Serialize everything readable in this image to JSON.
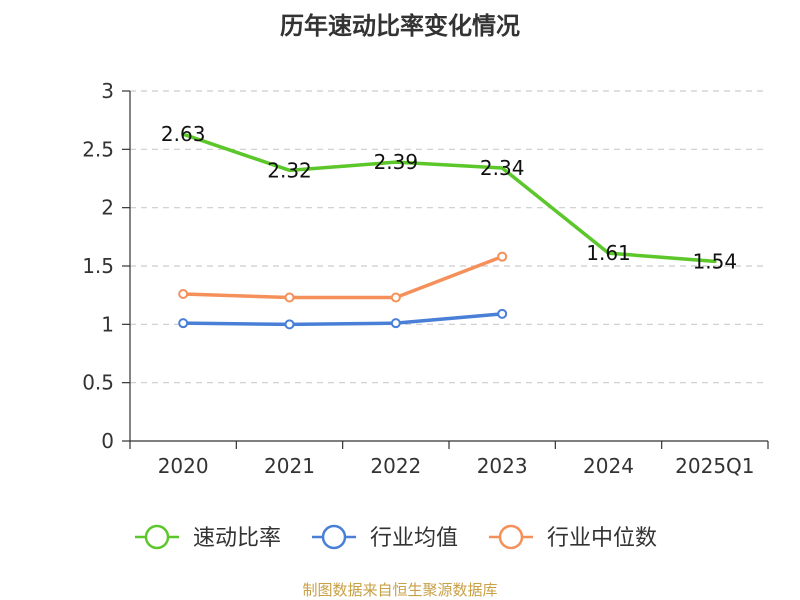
{
  "chart_data": {
    "type": "line",
    "title": "历年速动比率变化情况",
    "categories": [
      "2020",
      "2021",
      "2022",
      "2023",
      "2024",
      "2025Q1"
    ],
    "ylim": [
      0,
      3
    ],
    "yticks": [
      "0",
      "0.5",
      "1",
      "1.5",
      "2",
      "2.5",
      "3"
    ],
    "grid": true,
    "legend_position": "bottom",
    "series": [
      {
        "name": "速动比率",
        "color": "#5cc72a",
        "values": [
          2.63,
          2.32,
          2.39,
          2.34,
          1.61,
          1.54
        ],
        "labels": [
          "2.63",
          "2.32",
          "2.39",
          "2.34",
          "1.61",
          "1.54"
        ]
      },
      {
        "name": "行业均值",
        "color": "#4a7fd8",
        "values": [
          1.01,
          1.0,
          1.01,
          1.09,
          null,
          null
        ]
      },
      {
        "name": "行业中位数",
        "color": "#f5905a",
        "values": [
          1.26,
          1.23,
          1.23,
          1.58,
          null,
          null
        ]
      }
    ]
  },
  "footer": {
    "source": "制图数据来自恒生聚源数据库"
  }
}
